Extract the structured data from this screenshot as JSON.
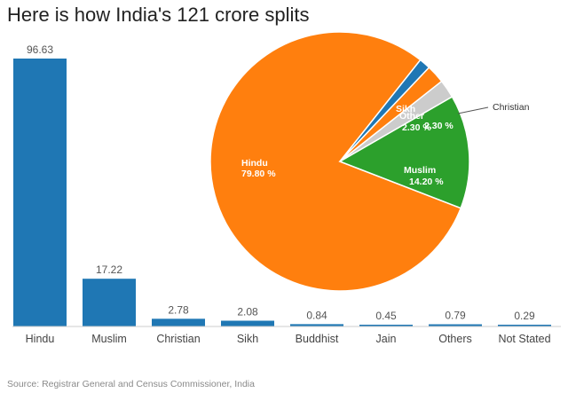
{
  "title": "Here is how India's 121 crore splits",
  "source": "Source: Registrar General and Census Commissioner, India",
  "chart_data": [
    {
      "type": "bar",
      "categories": [
        "Hindu",
        "Muslim",
        "Christian",
        "Sikh",
        "Buddhist",
        "Jain",
        "Others",
        "Not Stated"
      ],
      "values": [
        96.63,
        17.22,
        2.78,
        2.08,
        0.84,
        0.45,
        0.79,
        0.29
      ],
      "data_labels": [
        "96.63",
        "17.22",
        "2.78",
        "2.08",
        "0.84",
        "0.45",
        "0.79",
        "0.29"
      ],
      "color": "#1f77b4",
      "xlabel": "",
      "ylabel": "",
      "ylim": [
        0,
        96.63
      ],
      "grid": false
    },
    {
      "type": "pie",
      "slices": [
        {
          "label": "Hindu",
          "value": 79.8,
          "value_text": "79.80 %",
          "color": "#ff7f0e"
        },
        {
          "label": "Muslim",
          "value": 14.2,
          "value_text": "14.20 %",
          "color": "#2ca02c"
        },
        {
          "label": "Christian",
          "value": 2.3,
          "value_text": "2.30 %",
          "color": "#cccccc"
        },
        {
          "label": "Other",
          "value": 2.3,
          "value_text": "2.30 %",
          "color": "#ff7f0e"
        },
        {
          "label": "Sikh",
          "value": 1.4,
          "value_text": "",
          "color": "#1f77b4"
        }
      ],
      "christian_callout": "Christian"
    }
  ]
}
